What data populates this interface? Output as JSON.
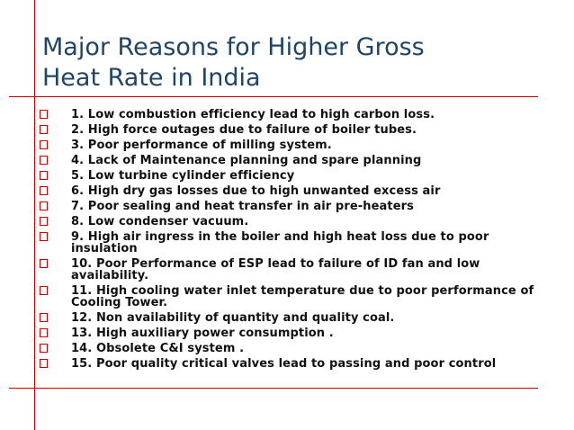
{
  "slide": {
    "title": "Major Reasons for Higher Gross\nHeat Rate in India",
    "items": [
      "1. Low combustion efficiency lead to high carbon loss.",
      "2. High force outages due to failure of boiler tubes.",
      "3. Poor performance of milling system.",
      "4. Lack of Maintenance planning and spare planning",
      "5. Low turbine cylinder efficiency",
      "6. High dry gas losses due to high unwanted excess air",
      "7. Poor sealing and heat transfer in air pre-heaters",
      "8. Low condenser vacuum.",
      "9. High air ingress in the boiler and high heat loss due to poor insulation",
      "10. Poor Performance of ESP lead to failure of ID fan and low availability.",
      "11. High cooling water inlet temperature due to poor performance of Cooling Tower.",
      "12. Non availability of quantity and quality coal.",
      "13. High auxiliary power consumption .",
      "14. Obsolete C&I system .",
      "15. Poor quality critical valves lead to passing and poor control"
    ]
  },
  "colors": {
    "accent": "#c80000",
    "title": "#1f4466",
    "text": "#111111",
    "background": "#ffffff"
  },
  "icons": {
    "bullet": "hollow-square-bullet-icon"
  }
}
